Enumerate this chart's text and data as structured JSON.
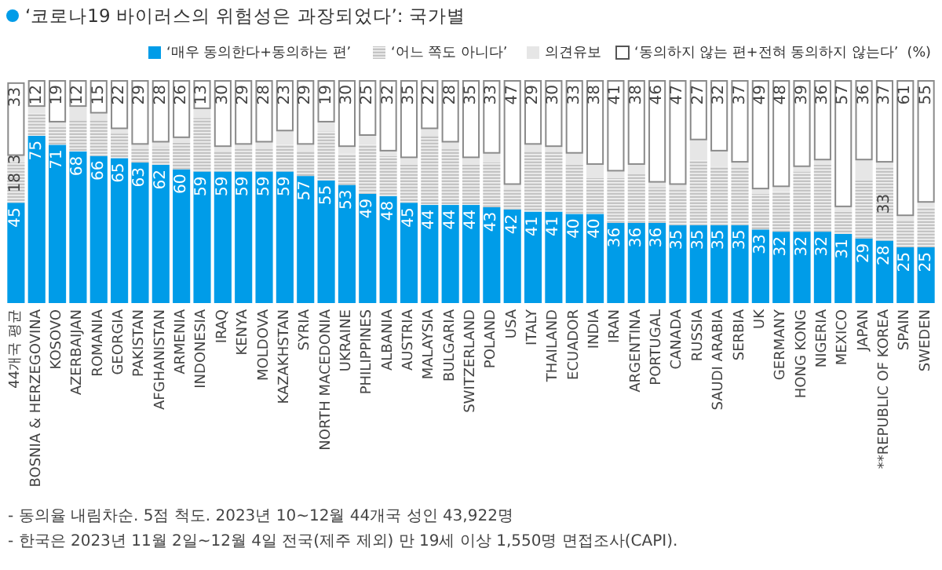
{
  "chart_data": {
    "type": "bar",
    "stacked": true,
    "title": "‘코로나19 바이러스의 위험성은 과장되었다’: 국가별",
    "ylabel": "(%)",
    "legend": "top right",
    "categories": [
      "44개국 평균",
      "BOSNIA & HERZEGOVINA",
      "KOSOVO",
      "AZERBAIJAN",
      "ROMANIA",
      "GEORGIA",
      "PAKISTAN",
      "AFGHANISTAN",
      "ARMENIA",
      "INDONESIA",
      "IRAQ",
      "KENYA",
      "MOLDOVA",
      "KAZAKHSTAN",
      "SYRIA",
      "NORTH MACEDONIA",
      "UKRAINE",
      "PHILIPPINES",
      "ALBANIA",
      "AUSTRIA",
      "MALAYSIA",
      "BULGARIA",
      "SWITZERLAND",
      "POLAND",
      "USA",
      "ITALY",
      "THAILAND",
      "ECUADOR",
      "INDIA",
      "IRAN",
      "ARGENTINA",
      "PORTUGAL",
      "CANADA",
      "RUSSIA",
      "SAUDI ARABIA",
      "SERBIA",
      "UK",
      "GERMANY",
      "HONG KONG",
      "NIGERIA",
      "MEXICO",
      "JAPAN",
      "**REPUBLIC OF KOREA",
      "SPAIN",
      "SWEDEN"
    ],
    "series": [
      {
        "name": "‘매우 동의한다+동의하는 편’",
        "color": "#009ce8",
        "values": [
          45,
          75,
          71,
          68,
          66,
          65,
          63,
          62,
          60,
          59,
          59,
          59,
          59,
          59,
          57,
          55,
          53,
          49,
          48,
          45,
          44,
          44,
          44,
          43,
          42,
          41,
          41,
          40,
          40,
          36,
          36,
          36,
          35,
          35,
          35,
          35,
          33,
          32,
          32,
          32,
          31,
          29,
          28,
          25,
          25
        ],
        "value_labels": [
          "45",
          "75",
          "71",
          "68",
          "66",
          "65",
          "63",
          "62",
          "60",
          "59",
          "59",
          "59",
          "59",
          "59",
          "57",
          "55",
          "53",
          "49",
          "48",
          "45",
          "44",
          "44",
          "44",
          "43",
          "42",
          "41",
          "41",
          "40",
          "40",
          "36",
          "36",
          "36",
          "35",
          "35",
          "35",
          "35",
          "33",
          "32",
          "32",
          "32",
          "31",
          "29",
          "28",
          "25",
          "25"
        ]
      },
      {
        "name": "‘어느 쪽도 아니다’",
        "color": "#c4c4c4",
        "values": [
          18,
          10,
          8,
          14,
          16,
          11,
          6,
          8,
          12,
          24,
          9,
          10,
          10,
          12,
          11,
          22,
          14,
          22,
          18,
          17,
          31,
          25,
          18,
          20,
          9,
          27,
          27,
          22,
          16,
          20,
          22,
          16,
          16,
          29,
          26,
          26,
          16,
          18,
          27,
          30,
          10,
          26,
          33,
          12,
          18
        ],
        "value_labels": [
          "18",
          null,
          null,
          null,
          null,
          null,
          null,
          null,
          null,
          null,
          null,
          null,
          null,
          null,
          null,
          null,
          null,
          null,
          null,
          null,
          null,
          null,
          null,
          null,
          null,
          null,
          null,
          null,
          null,
          null,
          null,
          null,
          null,
          null,
          null,
          null,
          null,
          null,
          null,
          null,
          null,
          null,
          "33",
          null,
          null
        ]
      },
      {
        "name": "의견유보",
        "color": "#e6e6e6",
        "values": [
          3,
          3,
          2,
          6,
          3,
          2,
          2,
          2,
          2,
          4,
          2,
          2,
          3,
          6,
          3,
          4,
          3,
          4,
          2,
          3,
          3,
          3,
          3,
          4,
          2,
          3,
          2,
          5,
          6,
          3,
          4,
          2,
          2,
          9,
          7,
          2,
          2,
          2,
          2,
          2,
          2,
          9,
          2,
          2,
          2
        ],
        "value_labels": [
          "3",
          null,
          null,
          null,
          null,
          null,
          null,
          null,
          null,
          null,
          null,
          null,
          null,
          null,
          null,
          null,
          null,
          null,
          null,
          null,
          null,
          null,
          null,
          null,
          null,
          null,
          null,
          null,
          null,
          null,
          null,
          null,
          null,
          null,
          null,
          null,
          null,
          null,
          null,
          null,
          null,
          null,
          null,
          null,
          null
        ]
      },
      {
        "name": "‘동의하지 않는 편+전혀 동의하지 않는다’",
        "color": "#ffffff",
        "values": [
          33,
          12,
          19,
          12,
          15,
          22,
          29,
          28,
          26,
          13,
          30,
          29,
          28,
          23,
          29,
          19,
          30,
          25,
          32,
          35,
          22,
          28,
          35,
          33,
          47,
          29,
          30,
          33,
          38,
          41,
          38,
          46,
          47,
          27,
          32,
          37,
          49,
          48,
          39,
          36,
          57,
          36,
          37,
          61,
          55
        ],
        "value_labels": [
          "33",
          "12",
          "19",
          "12",
          "15",
          "22",
          "29",
          "28",
          "26",
          "13",
          "30",
          "29",
          "28",
          "23",
          "29",
          "19",
          "30",
          "25",
          "32",
          "35",
          "22",
          "28",
          "35",
          "33",
          "47",
          "29",
          "30",
          "33",
          "38",
          "41",
          "38",
          "46",
          "47",
          "27",
          "32",
          "37",
          "49",
          "48",
          "39",
          "36",
          "57",
          "36",
          "37",
          "61",
          "55"
        ]
      }
    ],
    "annotations": [
      "- 동의율 내림차순. 5점 척도. 2023년 10~12월 44개국 성인 43,922명",
      "- 한국은 2023년 11월 2일~12월 4일 전국(제주 제외) 만 19세 이상 1,550명 면접조사(CAPI)."
    ]
  }
}
